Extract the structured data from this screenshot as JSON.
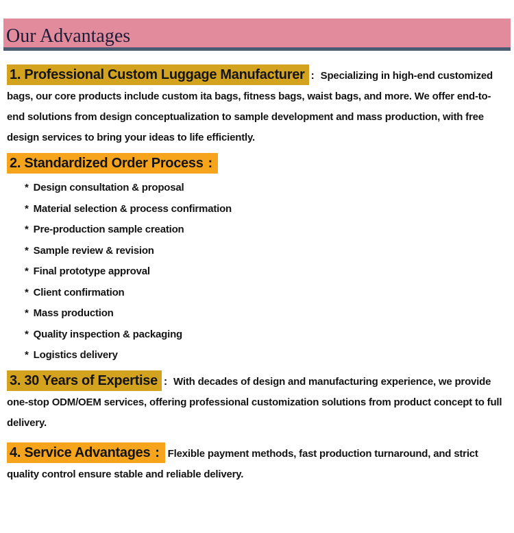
{
  "header": {
    "title": "Our Advantages"
  },
  "colors": {
    "header_bg": "#e28b9d",
    "header_text": "#1f1c38",
    "rule": "#4a5b74",
    "gold": "#d3a21e",
    "orange": "#f5a41c",
    "text": "#141414"
  },
  "sections": [
    {
      "heading": "1. Professional Custom Luggage Manufacturer",
      "colon": ":",
      "highlight": "gold",
      "desc": "Specializing in high-end customized bags, our core products include custom ita bags, fitness bags, waist bags, and more. We offer end-to-end solutions from design conceptualization to sample development and mass production, with free design services to bring your ideas to life efficiently."
    },
    {
      "heading": "2. Standardized Order Process",
      "colon": ":",
      "highlight": "orange",
      "bullet": "*",
      "items": [
        "Design consultation & proposal",
        "Material selection & process confirmation",
        "Pre-production sample creation",
        "Sample review & revision",
        "Final prototype approval",
        "Client confirmation",
        "Mass production",
        "Quality inspection & packaging",
        "Logistics delivery"
      ]
    },
    {
      "heading": "3. 30 Years of Expertise",
      "colon": ":",
      "highlight": "gold",
      "desc": "With decades of design and manufacturing experience, we provide one-stop ODM/OEM services, offering professional customization solutions from product concept to full delivery."
    },
    {
      "heading": "4. Service Advantages",
      "colon": ":",
      "highlight": "orange",
      "desc": "Flexible payment methods, fast production turnaround, and strict quality control ensure stable and reliable delivery."
    }
  ]
}
